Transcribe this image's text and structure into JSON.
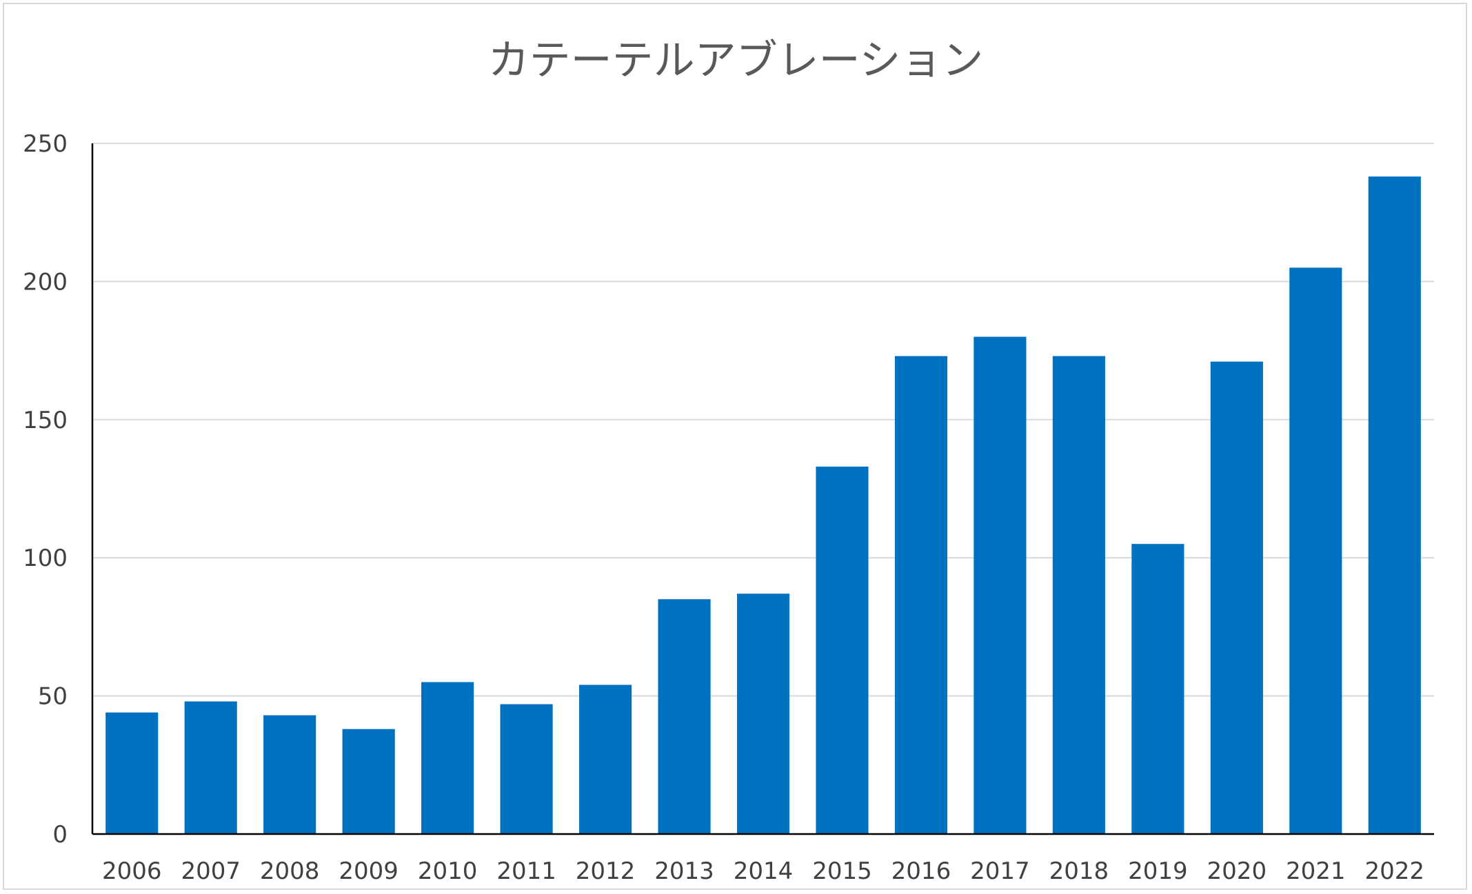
{
  "chart_data": {
    "type": "bar",
    "title": "カテーテルアブレーション",
    "xlabel": "",
    "ylabel": "",
    "categories": [
      "2006",
      "2007",
      "2008",
      "2009",
      "2010",
      "2011",
      "2012",
      "2013",
      "2014",
      "2015",
      "2016",
      "2017",
      "2018",
      "2019",
      "2020",
      "2021",
      "2022"
    ],
    "values": [
      44,
      48,
      43,
      38,
      55,
      47,
      54,
      85,
      87,
      133,
      173,
      180,
      173,
      105,
      171,
      205,
      238
    ],
    "ylim": [
      0,
      250
    ],
    "yticks": [
      0,
      50,
      100,
      150,
      200,
      250
    ],
    "grid": true,
    "legend": "none",
    "bar_color": "#0070C0"
  }
}
